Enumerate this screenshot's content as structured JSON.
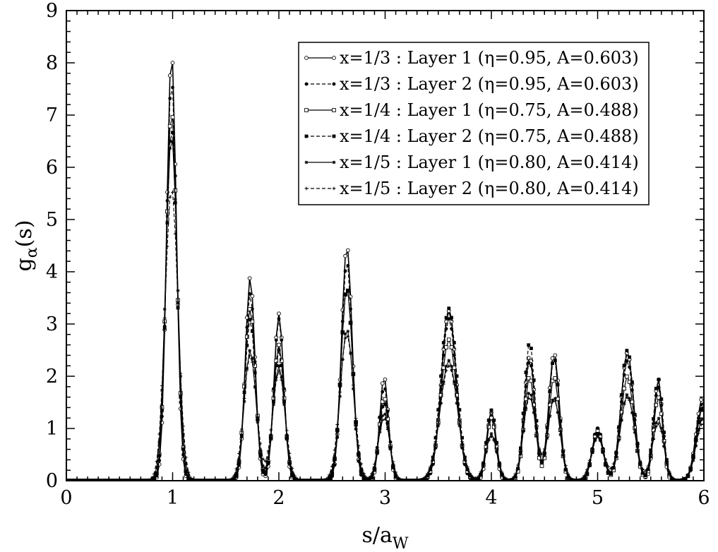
{
  "chart_data": {
    "type": "line",
    "xlabel": "s/a_W",
    "xlabel_main": "s/a",
    "xlabel_sub": "W",
    "ylabel": "g_α(s)",
    "ylabel_main": "g",
    "ylabel_sub": "α",
    "ylabel_tail": "(s)",
    "xlim": [
      0,
      6
    ],
    "ylim": [
      0,
      9
    ],
    "x_ticks": [
      "0",
      "1",
      "2",
      "3",
      "4",
      "5",
      "6"
    ],
    "y_ticks": [
      "0",
      "1",
      "2",
      "3",
      "4",
      "5",
      "6",
      "7",
      "8",
      "9"
    ],
    "grid": false,
    "legend_position": "top-right",
    "x_step": 0.025,
    "series": [
      {
        "name": "x=1/3 : Layer 1 (η=0.95, A=0.603)",
        "dash": "solid",
        "marker": "open-circle",
        "width": 1.6,
        "peaks": [
          [
            0.99,
            8.2,
            0.045
          ],
          [
            1.73,
            3.9,
            0.045
          ],
          [
            2.0,
            3.2,
            0.045
          ],
          [
            2.64,
            4.5,
            0.05
          ],
          [
            2.99,
            2.0,
            0.04
          ],
          [
            3.6,
            3.25,
            0.07
          ],
          [
            4.0,
            1.3,
            0.04
          ],
          [
            4.36,
            2.4,
            0.05
          ],
          [
            4.59,
            2.45,
            0.05
          ],
          [
            5.0,
            1.0,
            0.05
          ],
          [
            5.28,
            2.45,
            0.06
          ],
          [
            5.57,
            1.95,
            0.04
          ],
          [
            5.99,
            1.6,
            0.06
          ]
        ]
      },
      {
        "name": "x=1/3 : Layer 2 (η=0.95, A=0.603)",
        "dash": "dashed",
        "marker": "filled-circle",
        "width": 1.2,
        "peaks": [
          [
            0.99,
            7.7,
            0.047
          ],
          [
            1.73,
            3.6,
            0.047
          ],
          [
            2.0,
            3.1,
            0.047
          ],
          [
            2.64,
            4.2,
            0.05
          ],
          [
            2.99,
            1.8,
            0.045
          ],
          [
            3.6,
            3.1,
            0.07
          ],
          [
            4.0,
            1.35,
            0.045
          ],
          [
            4.36,
            2.3,
            0.05
          ],
          [
            4.59,
            2.35,
            0.05
          ],
          [
            5.0,
            1.0,
            0.05
          ],
          [
            5.28,
            2.3,
            0.06
          ],
          [
            5.57,
            1.8,
            0.045
          ],
          [
            5.99,
            1.5,
            0.06
          ]
        ]
      },
      {
        "name": "x=1/4 : Layer 1 (η=0.75, A=0.488)",
        "dash": "solid",
        "marker": "open-square",
        "width": 1.2,
        "peaks": [
          [
            0.99,
            7.1,
            0.05
          ],
          [
            1.73,
            3.3,
            0.05
          ],
          [
            2.0,
            2.6,
            0.05
          ],
          [
            2.64,
            3.7,
            0.055
          ],
          [
            2.99,
            1.6,
            0.045
          ],
          [
            3.6,
            2.7,
            0.075
          ],
          [
            4.0,
            1.2,
            0.045
          ],
          [
            4.36,
            2.0,
            0.05
          ],
          [
            4.59,
            2.0,
            0.05
          ],
          [
            5.0,
            0.95,
            0.05
          ],
          [
            5.28,
            2.0,
            0.06
          ],
          [
            5.57,
            1.6,
            0.045
          ],
          [
            5.99,
            1.4,
            0.06
          ]
        ]
      },
      {
        "name": "x=1/4 : Layer 2 (η=0.75, A=0.488)",
        "dash": "dashed",
        "marker": "filled-square",
        "width": 1.2,
        "peaks": [
          [
            0.99,
            6.8,
            0.05
          ],
          [
            1.73,
            3.1,
            0.05
          ],
          [
            2.0,
            2.5,
            0.05
          ],
          [
            2.64,
            3.7,
            0.055
          ],
          [
            2.99,
            1.5,
            0.045
          ],
          [
            3.6,
            3.3,
            0.075
          ],
          [
            4.0,
            1.35,
            0.045
          ],
          [
            4.36,
            2.65,
            0.05
          ],
          [
            4.59,
            2.35,
            0.05
          ],
          [
            5.0,
            0.9,
            0.05
          ],
          [
            5.28,
            2.5,
            0.06
          ],
          [
            5.57,
            1.95,
            0.045
          ],
          [
            5.99,
            1.4,
            0.06
          ]
        ]
      },
      {
        "name": "x=1/5 : Layer 1 (η=0.80, A=0.414)",
        "dash": "solid",
        "marker": "star",
        "width": 1.1,
        "peaks": [
          [
            0.99,
            6.6,
            0.055
          ],
          [
            1.73,
            2.5,
            0.055
          ],
          [
            2.0,
            2.2,
            0.055
          ],
          [
            2.64,
            2.9,
            0.06
          ],
          [
            2.99,
            1.3,
            0.05
          ],
          [
            3.6,
            2.3,
            0.08
          ],
          [
            4.0,
            0.9,
            0.05
          ],
          [
            4.36,
            1.7,
            0.055
          ],
          [
            4.59,
            1.6,
            0.055
          ],
          [
            5.0,
            0.85,
            0.055
          ],
          [
            5.28,
            1.65,
            0.065
          ],
          [
            5.57,
            1.2,
            0.05
          ],
          [
            5.99,
            1.2,
            0.06
          ]
        ]
      },
      {
        "name": "x=1/5 : Layer 2 (η=0.80, A=0.414)",
        "dash": "dashed",
        "marker": "plus",
        "width": 1.1,
        "peaks": [
          [
            0.99,
            5.6,
            0.06
          ],
          [
            1.73,
            2.4,
            0.06
          ],
          [
            2.0,
            2.1,
            0.06
          ],
          [
            2.64,
            2.8,
            0.065
          ],
          [
            2.99,
            1.2,
            0.055
          ],
          [
            3.6,
            2.2,
            0.085
          ],
          [
            4.0,
            0.85,
            0.055
          ],
          [
            4.36,
            1.6,
            0.06
          ],
          [
            4.59,
            1.55,
            0.06
          ],
          [
            5.0,
            0.85,
            0.06
          ],
          [
            5.28,
            1.6,
            0.07
          ],
          [
            5.57,
            1.1,
            0.055
          ],
          [
            5.99,
            1.1,
            0.065
          ]
        ]
      }
    ]
  }
}
